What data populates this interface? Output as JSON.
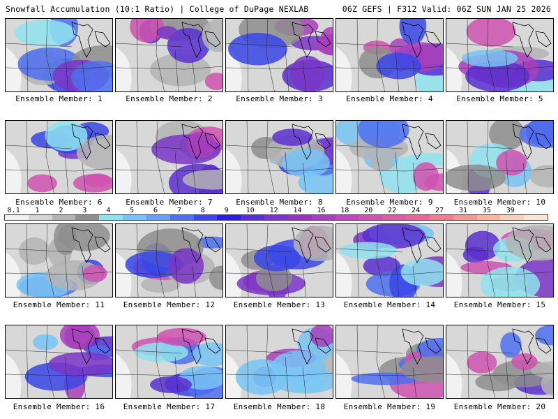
{
  "header": {
    "title": "Snowfall Accumulation (10:1 Ratio) | College of DuPage NEXLAB",
    "run_info": "06Z GEFS | F312 Valid: 06Z SUN JAN 25 2026"
  },
  "panels": [
    {
      "label": "Ensemble Member: 1"
    },
    {
      "label": "Ensemble Member: 2"
    },
    {
      "label": "Ensemble Member: 3"
    },
    {
      "label": "Ensemble Member: 4"
    },
    {
      "label": "Ensemble Member: 5"
    },
    {
      "label": "Ensemble Member: 6"
    },
    {
      "label": "Ensemble Member: 7"
    },
    {
      "label": "Ensemble Member: 8"
    },
    {
      "label": "Ensemble Member: 9"
    },
    {
      "label": "Ensemble Member: 10"
    },
    {
      "label": "Ensemble Member: 11"
    },
    {
      "label": "Ensemble Member: 12"
    },
    {
      "label": "Ensemble Member: 13"
    },
    {
      "label": "Ensemble Member: 14"
    },
    {
      "label": "Ensemble Member: 15"
    },
    {
      "label": "Ensemble Member: 16"
    },
    {
      "label": "Ensemble Member: 17"
    },
    {
      "label": "Ensemble Member: 18"
    },
    {
      "label": "Ensemble Member: 19"
    },
    {
      "label": "Ensemble Member: 20"
    }
  ],
  "legend": {
    "labels": [
      "0.1",
      "1",
      "2",
      "3",
      "4",
      "5",
      "6",
      "7",
      "8",
      "9",
      "10",
      "12",
      "14",
      "16",
      "18",
      "20",
      "22",
      "24",
      "27",
      "31",
      "35",
      "39"
    ],
    "colors": [
      "#f0f0f0",
      "#d4d4d4",
      "#b4b4b4",
      "#8e8e8e",
      "#8fe3f0",
      "#78c4f5",
      "#6aa0f5",
      "#4f70ee",
      "#3a46e6",
      "#2a1fd6",
      "#5a2fcf",
      "#7a36c8",
      "#9334be",
      "#a83fbb",
      "#bd49b8",
      "#cf52b0",
      "#dd5aa5",
      "#e86798",
      "#ee7d8f",
      "#f29a91",
      "#f5b59e",
      "#f8cfb8",
      "#fbe3d3"
    ]
  }
}
